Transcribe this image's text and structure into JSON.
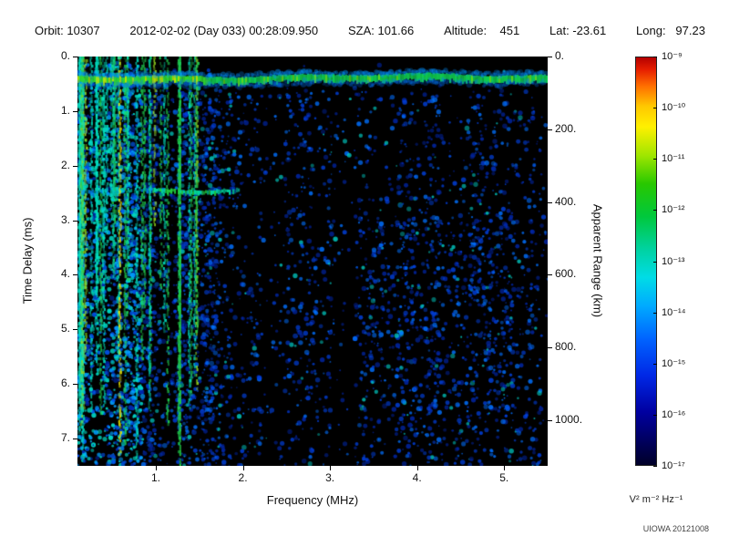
{
  "header": {
    "items": [
      "Orbit: 10307",
      "2012-02-02 (Day 033) 00:28:09.950",
      "SZA: 101.66",
      "Altitude:    451",
      "Lat: -23.61",
      "Long:   97.23"
    ]
  },
  "chart_data": {
    "type": "heatmap",
    "description": "Radar sounder delay-frequency spectrogram (ionogram): received spectral density vs sounding frequency and echo time delay",
    "xlabel": "Frequency (MHz)",
    "ylabel_left": "Time Delay (ms)",
    "ylabel_right": "Apparent Range (km)",
    "x_range_mhz": [
      0.1,
      5.5
    ],
    "x_ticks_mhz": [
      1,
      2,
      3,
      4,
      5
    ],
    "x_tick_labels": [
      "1.",
      "2.",
      "3.",
      "4.",
      "5."
    ],
    "y_range_ms": [
      0,
      7.5
    ],
    "y_ticks_ms": [
      0,
      1,
      2,
      3,
      4,
      5,
      6,
      7
    ],
    "y_tick_labels": [
      "0.",
      "1.",
      "2.",
      "3.",
      "4.",
      "5.",
      "6.",
      "7."
    ],
    "right_range_km": [
      0,
      1125
    ],
    "right_ticks_km": [
      0,
      200,
      400,
      600,
      800,
      1000
    ],
    "right_tick_labels": [
      "0.",
      "200.",
      "400.",
      "600.",
      "800.",
      "1000."
    ],
    "background": "#000000",
    "colorbar": {
      "scale": "log",
      "max": "1e-9",
      "min": "1e-17",
      "tick_labels": [
        "10⁻⁹",
        "10⁻¹⁰",
        "10⁻¹¹",
        "10⁻¹²",
        "10⁻¹³",
        "10⁻¹⁴",
        "10⁻¹⁵",
        "10⁻¹⁶",
        "10⁻¹⁷"
      ],
      "unit": "V² m⁻² Hz⁻¹",
      "gradient": [
        [
          "0%",
          "#b40000"
        ],
        [
          "3%",
          "#e61e00"
        ],
        [
          "7%",
          "#ff6e00"
        ],
        [
          "12%",
          "#ffc800"
        ],
        [
          "17%",
          "#fff000"
        ],
        [
          "24%",
          "#a0e600"
        ],
        [
          "31%",
          "#28c800"
        ],
        [
          "39%",
          "#00c83c"
        ],
        [
          "47%",
          "#00d2a0"
        ],
        [
          "54%",
          "#00dce6"
        ],
        [
          "61%",
          "#00aaff"
        ],
        [
          "69%",
          "#0064ff"
        ],
        [
          "78%",
          "#0028e6"
        ],
        [
          "87%",
          "#0000a0"
        ],
        [
          "100%",
          "#000028"
        ]
      ]
    },
    "features": {
      "noise_seed": 977,
      "surface_echo": {
        "delay_ms": 0.4,
        "thickness_ms": 0.14
      },
      "second_echo": {
        "delay_ms": 2.45,
        "freq_max_mhz": 1.95
      },
      "plasma_line_mhz": [
        1.28
      ],
      "ionosphere_cutoff_mhz": 1.55,
      "dark_bands_mhz": [
        2.35,
        3.15
      ],
      "diffuse_cluster": {
        "f_mhz": [
          3.4,
          5.1
        ],
        "delay_ms": [
          3.0,
          6.8
        ]
      }
    }
  },
  "credit": "UIOWA 20121008"
}
